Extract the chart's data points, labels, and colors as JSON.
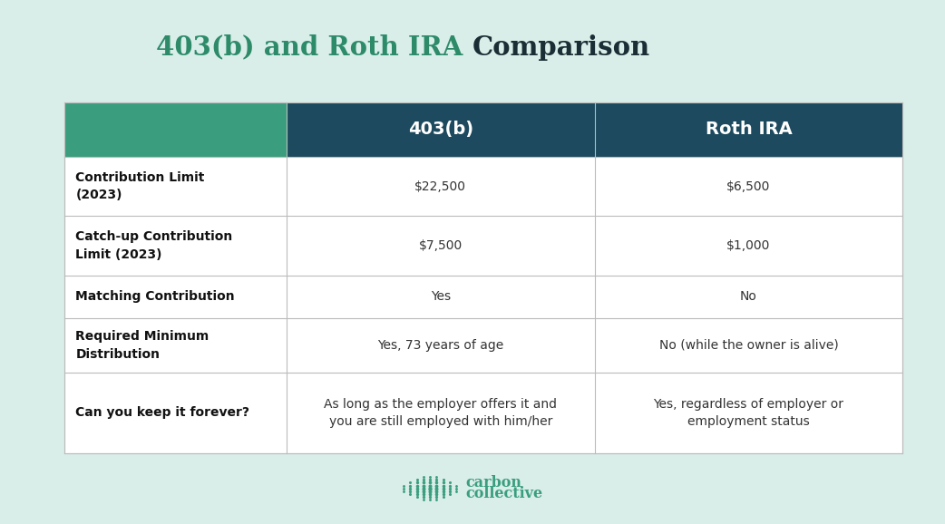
{
  "title_green": "403(b) and Roth IRA ",
  "title_dark": "Comparison",
  "bg_color": "#daeee9",
  "table_bg": "#ffffff",
  "header_col1_color": "#3a9e7e",
  "header_col2_color": "#1d4a5e",
  "header_text_color": "#ffffff",
  "row_label_color": "#111111",
  "row_value_color": "#333333",
  "grid_color": "#bbbbbb",
  "title_green_color": "#2d8b6a",
  "title_dark_color": "#1a2e35",
  "brand_color": "#3a9e7e",
  "col_headers": [
    "403(b)",
    "Roth IRA"
  ],
  "row_labels": [
    "Contribution Limit\n(2023)",
    "Catch-up Contribution\nLimit (2023)",
    "Matching Contribution",
    "Required Minimum\nDistribution",
    "Can you keep it forever?"
  ],
  "col1_values": [
    "$22,500",
    "$7,500",
    "Yes",
    "Yes, 73 years of age",
    "As long as the employer offers it and\nyou are still employed with him/her"
  ],
  "col2_values": [
    "$6,500",
    "$1,000",
    "No",
    "No (while the owner is alive)",
    "Yes, regardless of employer or\nemployment status"
  ]
}
